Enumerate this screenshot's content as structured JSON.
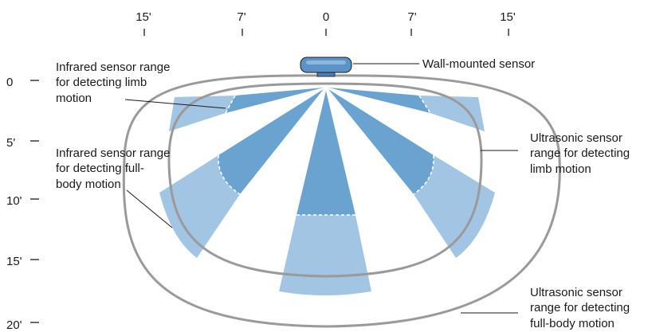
{
  "diagram": {
    "top_axis": {
      "tick_labels": [
        "15'",
        "7'",
        "0",
        "7'",
        "15'"
      ]
    },
    "left_axis": {
      "tick_labels": [
        "0",
        "5'",
        "10'",
        "15'",
        "20'"
      ]
    },
    "labels": {
      "sensor": "Wall-mounted sensor",
      "ir_limb": [
        "Infrared sensor range",
        "for detecting limb",
        "motion"
      ],
      "ir_body": [
        "Infrared sensor range",
        "for detecting full-",
        "body motion"
      ],
      "us_limb": [
        "Ultrasonic sensor",
        "range for detecting",
        "limb motion"
      ],
      "us_body": [
        "Ultrasonic sensor",
        "range for detecting",
        "full-body motion"
      ]
    },
    "colors": {
      "ir_limb_zone": "#6aa3d0",
      "ir_body_zone": "#a3c5e4",
      "ultrasonic_outline": "#9a9a9a",
      "sensor_body": "#5b93c7"
    }
  }
}
